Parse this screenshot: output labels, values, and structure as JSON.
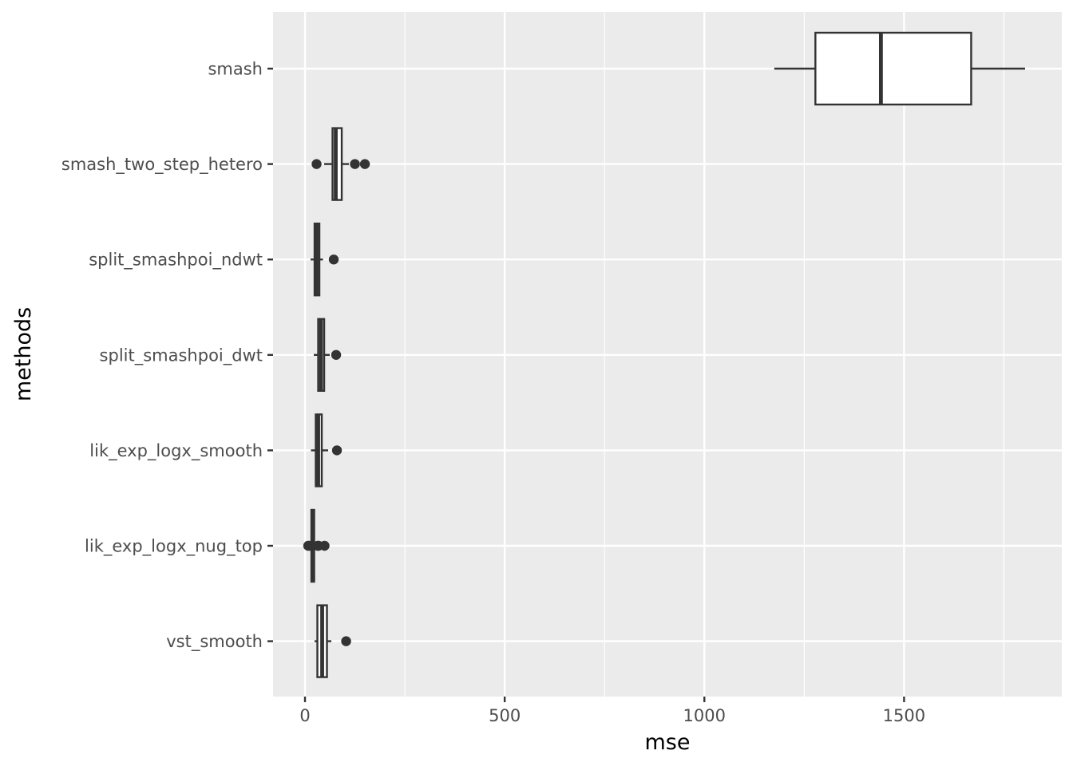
{
  "chart_data": {
    "type": "boxplot",
    "orientation": "horizontal",
    "xlabel": "mse",
    "ylabel": "methods",
    "xlim": [
      -80,
      1895
    ],
    "x_ticks": [
      0,
      500,
      1000,
      1500
    ],
    "x_tick_labels": [
      "0",
      "500",
      "1000",
      "1500"
    ],
    "grid": true,
    "panel_background": "#EBEBEB",
    "grid_color": "#FFFFFF",
    "box_stroke": "#333333",
    "box_fill": "#FFFFFF",
    "categories": [
      "smash",
      "smash_two_step_hetero",
      "split_smashpoi_ndwt",
      "split_smashpoi_dwt",
      "lik_exp_logx_smooth",
      "lik_exp_logx_nug_top",
      "vst_smooth"
    ],
    "boxes": [
      {
        "name": "smash",
        "whisker_low": 1175,
        "q1": 1278,
        "median": 1442,
        "q3": 1668,
        "whisker_high": 1803,
        "outliers": []
      },
      {
        "name": "smash_two_step_hetero",
        "whisker_low": 48,
        "q1": 69,
        "median": 77,
        "q3": 92,
        "whisker_high": 110,
        "outliers": [
          29,
          125,
          150
        ]
      },
      {
        "name": "split_smashpoi_ndwt",
        "whisker_low": 14,
        "q1": 24,
        "median": 29,
        "q3": 36,
        "whisker_high": 45,
        "outliers": [
          72
        ]
      },
      {
        "name": "split_smashpoi_dwt",
        "whisker_low": 22,
        "q1": 33,
        "median": 40,
        "q3": 48,
        "whisker_high": 62,
        "outliers": [
          78
        ]
      },
      {
        "name": "lik_exp_logx_smooth",
        "whisker_low": 15,
        "q1": 27,
        "median": 33,
        "q3": 42,
        "whisker_high": 58,
        "outliers": [
          80
        ]
      },
      {
        "name": "lik_exp_logx_nug_top",
        "whisker_low": 13,
        "q1": 16,
        "median": 19,
        "q3": 23,
        "whisker_high": 27,
        "outliers": [
          8,
          12,
          32,
          34,
          49
        ]
      },
      {
        "name": "vst_smooth",
        "whisker_low": 24,
        "q1": 31,
        "median": 43,
        "q3": 55,
        "whisker_high": 66,
        "outliers": [
          103
        ]
      }
    ]
  }
}
